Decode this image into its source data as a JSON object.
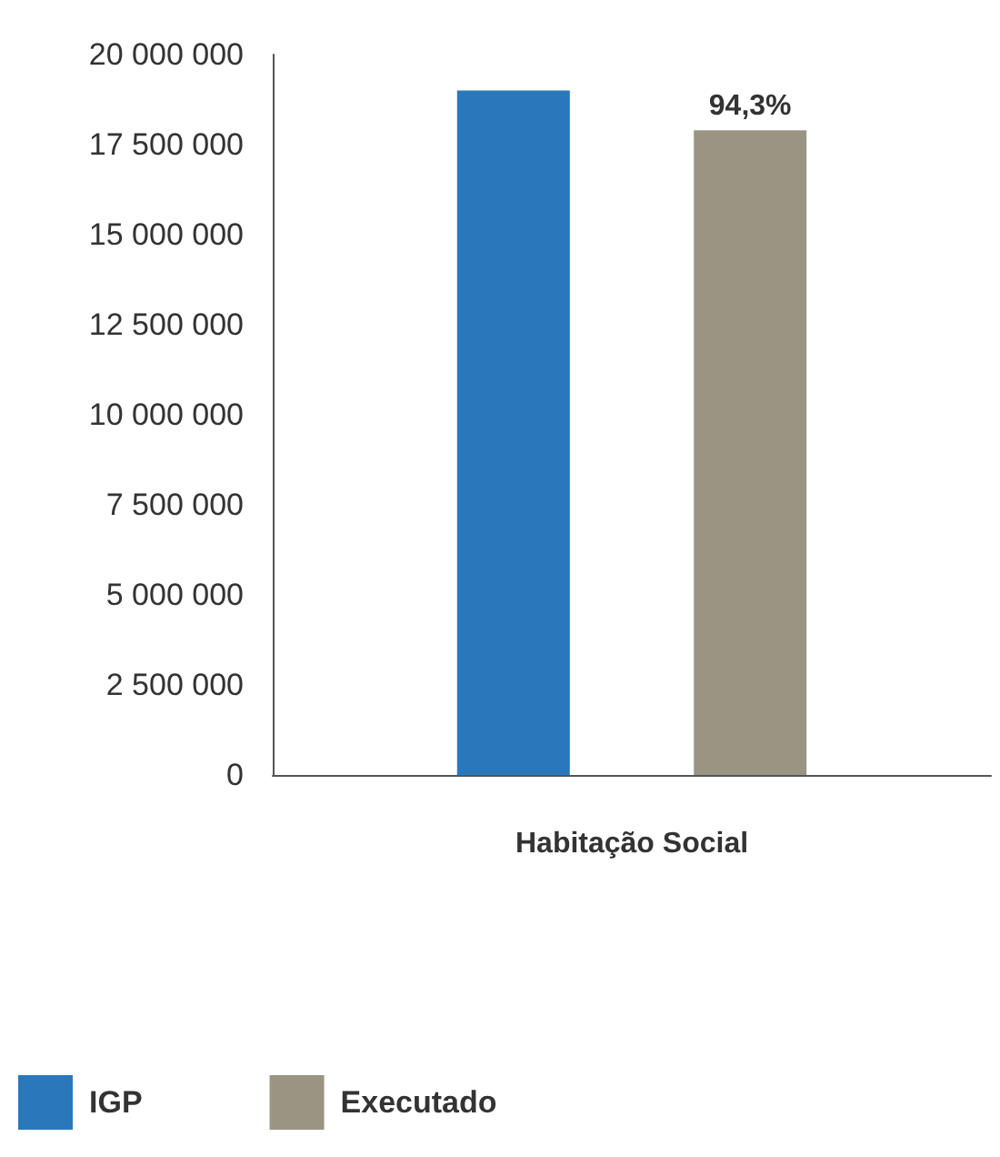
{
  "chart_data": {
    "type": "bar",
    "categories": [
      "Habitação Social"
    ],
    "series": [
      {
        "name": "IGP",
        "color": "#2a78bb",
        "values": [
          19000000
        ]
      },
      {
        "name": "Executado",
        "color": "#9a9583",
        "values": [
          17900000
        ]
      }
    ],
    "annotations": [
      "94,3%"
    ],
    "ylim": [
      0,
      20000000
    ],
    "yticks": [
      0,
      2500000,
      5000000,
      7500000,
      10000000,
      12500000,
      15000000,
      17500000,
      20000000
    ],
    "grid": false,
    "legend": "bottom left"
  }
}
